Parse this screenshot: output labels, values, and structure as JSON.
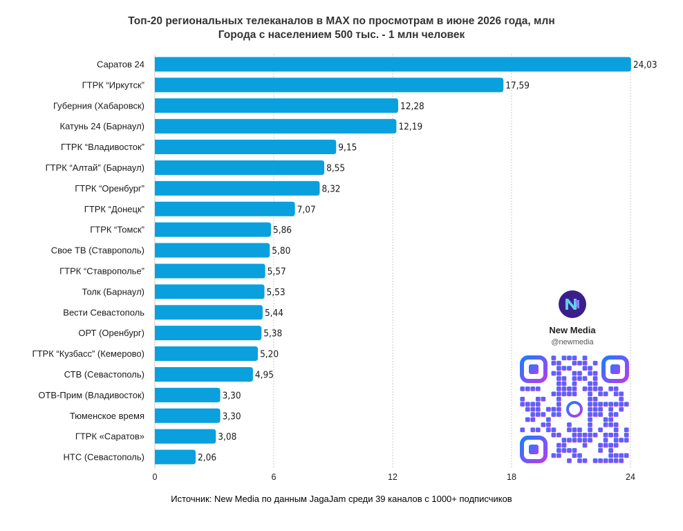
{
  "title_line1": "Топ-20 региональных телеканалов в MAX по просмотрам в июне 2026 года, млн",
  "title_line2": "Города с населением 500 тыс. - 1 млн человек",
  "source": "Источник: New Media по данным JagaJam среди 39 каналов с 1000+ подписчиков",
  "brand": {
    "name": "New Media",
    "handle": "@newmedia",
    "logo_text": "New Media",
    "logo_color": "#3b1e8a",
    "qr_gradient": [
      "#1e7bff",
      "#b43cf0"
    ]
  },
  "colors": {
    "bar": "#0aa0de",
    "grid": "#c9c9c9"
  },
  "chart_data": {
    "type": "bar",
    "orientation": "horizontal",
    "title": "Топ-20 региональных телеканалов в MAX по просмотрам в июне 2026 года, млн",
    "subtitle": "Города с населением 500 тыс. - 1 млн человек",
    "categories": [
      "Саратов 24",
      "ГТРК “Иркутск”",
      "Губерния (Хабаровск)",
      "Катунь 24 (Барнаул)",
      "ГТРК “Владивосток”",
      "ГТРК “Алтай” (Барнаул)",
      "ГТРК “Оренбург”",
      "ГТРК “Донецк”",
      "ГТРК “Томск”",
      "Свое ТВ (Ставрополь)",
      "ГТРК “Ставрополье”",
      "Толк (Барнаул)",
      "Вести Севастополь",
      "ОРТ (Оренбург)",
      "ГТРК “Кузбасс” (Кемерово)",
      "СТВ (Севастополь)",
      "ОТВ-Прим (Владивосток)",
      "Тюменское время",
      "ГТРК «Саратов»",
      "НТС (Севастополь)"
    ],
    "values": [
      24.03,
      17.59,
      12.28,
      12.19,
      9.15,
      8.55,
      8.32,
      7.07,
      5.86,
      5.8,
      5.57,
      5.53,
      5.44,
      5.38,
      5.2,
      4.95,
      3.3,
      3.3,
      3.08,
      2.06
    ],
    "value_labels": [
      "24,03",
      "17,59",
      "12,28",
      "12,19",
      "9,15",
      "8,55",
      "8,32",
      "7,07",
      "5,86",
      "5,80",
      "5,57",
      "5,53",
      "5,44",
      "5,38",
      "5,20",
      "4,95",
      "3,30",
      "3,30",
      "3,08",
      "2,06"
    ],
    "xlim": [
      0,
      24
    ],
    "xticks": [
      0,
      6,
      12,
      18,
      24
    ],
    "xtick_labels": [
      "0",
      "6",
      "12",
      "18",
      "24"
    ],
    "grid": "vertical dotted"
  }
}
